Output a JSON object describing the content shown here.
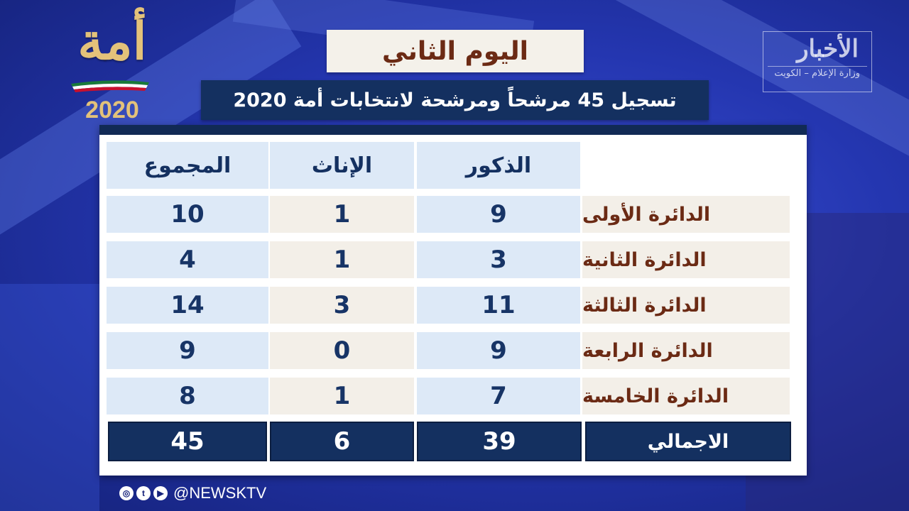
{
  "logo": {
    "text": "أمة",
    "year": "2020"
  },
  "brand": {
    "name": "الأخبار",
    "subtitle": "وزارة الإعلام – الكويت"
  },
  "header": {
    "title": "اليوم الثاني",
    "subtitle": "تسجيل 45 مرشحاً ومرشحة لانتخابات أمة 2020"
  },
  "table": {
    "columns": [
      "الذكور",
      "الإناث",
      "المجموع"
    ],
    "rows": [
      {
        "label": "الدائرة الأولى",
        "males": "9",
        "females": "1",
        "total": "10"
      },
      {
        "label": "الدائرة الثانية",
        "males": "3",
        "females": "1",
        "total": "4"
      },
      {
        "label": "الدائرة الثالثة",
        "males": "11",
        "females": "3",
        "total": "14"
      },
      {
        "label": "الدائرة الرابعة",
        "males": "9",
        "females": "0",
        "total": "9"
      },
      {
        "label": "الدائرة الخامسة",
        "males": "7",
        "females": "1",
        "total": "8"
      }
    ],
    "totals": {
      "label": "الاجمالي",
      "males": "39",
      "females": "6",
      "total": "45"
    }
  },
  "social": {
    "icons": [
      "instagram-icon",
      "twitter-icon",
      "youtube-icon"
    ],
    "handle": "@NEWSKTV"
  },
  "colors": {
    "navy": "#143060",
    "light_blue": "#dde9f7",
    "beige": "#f3efe8",
    "brown": "#6b2a14",
    "gold": "#e3c27a"
  }
}
